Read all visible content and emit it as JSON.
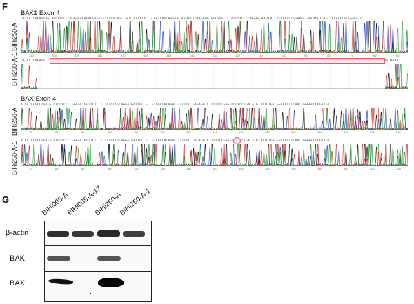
{
  "panel_f": {
    "letter": "F",
    "bak1": {
      "title": "BAK1 Exon 4",
      "samples": [
        "BIHi250-A",
        "BIHi250-A-1"
      ],
      "seq_top": "GATCCTCAGAGGAGCAGGTAGCCCAGGACACAGAGGAGGTTTTCCGCAGCTACGTTTTTTACCGCCATCAGCAGGAACAGGAGCTGAAGGGGTGGCTGGCCCTGCCCACCCCAGAGATGGTCACCTTACCTCTGGAACCTAGCAGGTGAGCTACAACCGCTGGGCCC",
      "seq_bottom": "GATCCTCAGAGG",
      "seq_bottom_end": "GCTGGGCCC",
      "ticks_top": [
        "210",
        "200",
        "190",
        "180",
        "170",
        "160",
        "150",
        "140",
        "130",
        "120",
        "110",
        "100",
        "90",
        "80",
        "70",
        "60",
        "50"
      ],
      "tick_bottom": "60"
    },
    "bax": {
      "title": "BAX Exon 4",
      "samples": [
        "BIHi250-A",
        "BIHi250-A-1"
      ],
      "seq_top": "ACCATCAGCCTGATGCCTGCTCCCCGGCACTGGTTCTCCTCTCTCCTGCAGGATGATTGCCGCCGTGGACACAGACTCCCCCC GAGAGGTCTTTTTCCGAGTGGCAGCTGACATGTTTTCTGACGGCAACTTCAACTGGGGCCGGGTTGT",
      "seq_bottom": "ACCATCAGCCTGATGCCTGCTCCCCGGCACTGGTTCTCCTCTCTCCTGCAGGATGATTGCCGCCGTGGACACAGACTCCCCCC GAGAGGTCTTTTTCCGAGTGGCAGCTGACATGTTTTCTGACGGCAACTTCAACTGGGGCCGGGTTGT",
      "ticks_top": [
        "70",
        "80",
        "90",
        "100",
        "110",
        "120",
        "130",
        "140",
        "150",
        "160",
        "170",
        "180",
        "190",
        "200",
        "210"
      ],
      "ticks_bottom": [
        "70",
        "80",
        "90",
        "100",
        "110",
        "120",
        "130",
        "140",
        "150",
        "160",
        "170",
        "180",
        "190",
        "200",
        "210"
      ]
    }
  },
  "panel_g": {
    "letter": "G",
    "lanes": [
      "BIHi005-A",
      "BIHi005-A-17",
      "BIHi250-A",
      "BIHi250-A-1"
    ],
    "rows": [
      "β-actin",
      "BAK",
      "BAX"
    ],
    "colors": {
      "highlight": "#e05a6a",
      "band": "#1a1a1a"
    }
  }
}
